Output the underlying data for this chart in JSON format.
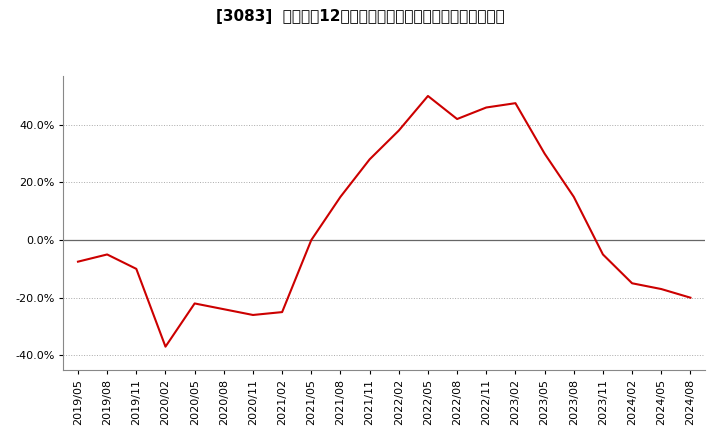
{
  "title": "[3083]  売上高の12か月移動合計の対前年同期増減率の推移",
  "x_labels": [
    "2019/05",
    "2019/08",
    "2019/11",
    "2020/02",
    "2020/05",
    "2020/08",
    "2020/11",
    "2021/02",
    "2021/05",
    "2021/08",
    "2021/11",
    "2022/02",
    "2022/05",
    "2022/08",
    "2022/11",
    "2023/02",
    "2023/05",
    "2023/08",
    "2023/11",
    "2024/02",
    "2024/05",
    "2024/08"
  ],
  "y_values": [
    -7.5,
    -5.0,
    -10.0,
    -37.0,
    -22.0,
    -24.0,
    -26.0,
    -25.0,
    0.0,
    15.0,
    28.0,
    38.0,
    50.0,
    42.0,
    46.0,
    47.5,
    30.0,
    15.0,
    -5.0,
    -15.0,
    -17.0,
    -20.0
  ],
  "line_color": "#cc0000",
  "background_color": "#ffffff",
  "grid_color": "#aaaaaa",
  "zero_line_color": "#666666",
  "ylim": [
    -45,
    57
  ],
  "yticks": [
    -40.0,
    -20.0,
    0.0,
    20.0,
    40.0
  ],
  "title_fontsize": 11,
  "tick_fontsize": 8
}
